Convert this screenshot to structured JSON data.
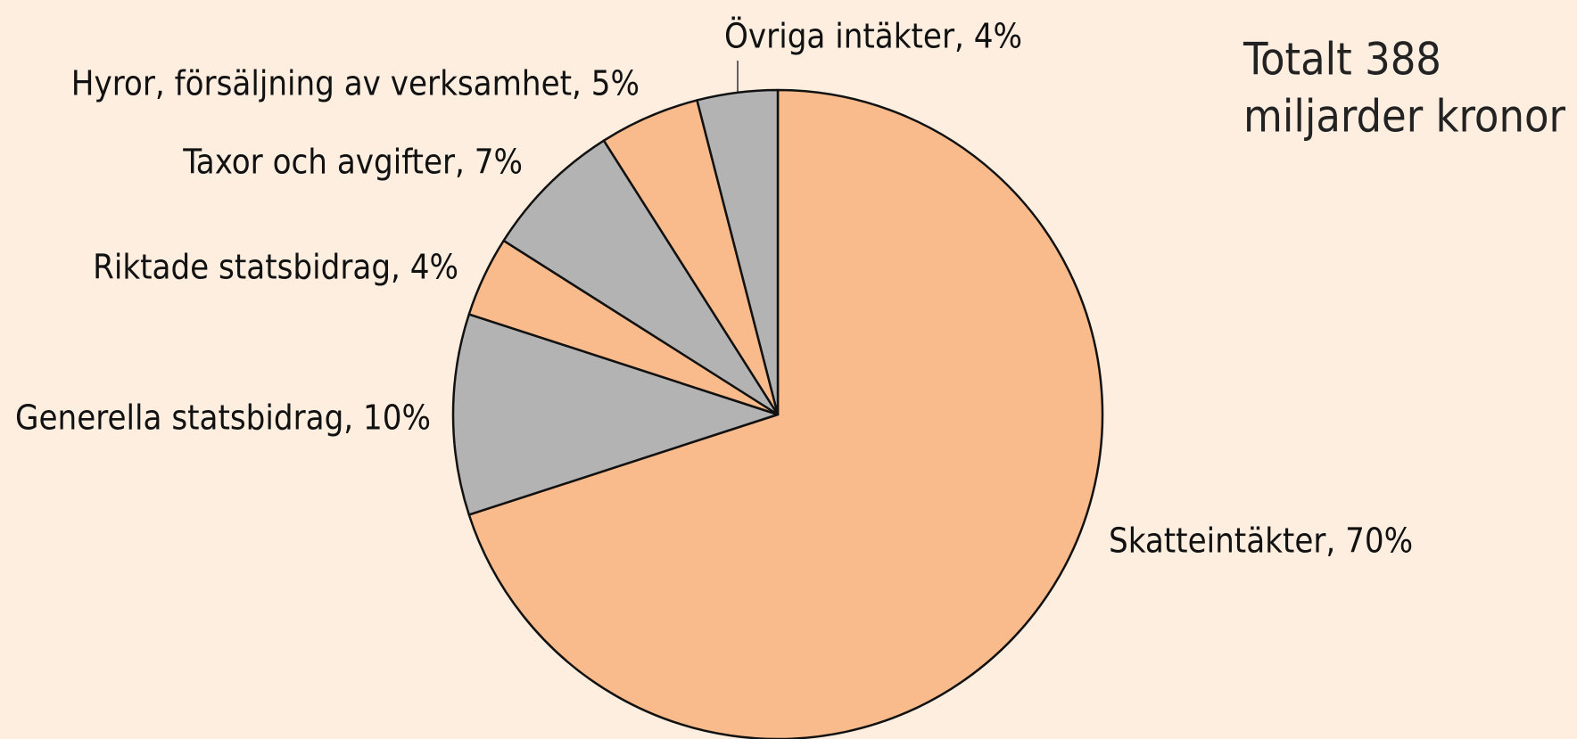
{
  "chart_data": {
    "type": "pie",
    "labels": [
      "Skatteintäkter, 70%",
      "Generella statsbidrag, 10%",
      "Riktade statsbidrag, 4%",
      "Taxor och avgifter, 7%",
      "Hyror, försäljning av verksamhet, 5%",
      "Övriga intäkter, 4%"
    ],
    "values": [
      70,
      10,
      4,
      7,
      5,
      4
    ],
    "colors": [
      "#f9bb8c",
      "#b3b3b3",
      "#f9bb8c",
      "#b3b3b3",
      "#f9bb8c",
      "#b3b3b3"
    ],
    "annotation": [
      "Totalt 388",
      "miljarder kronor"
    ]
  }
}
